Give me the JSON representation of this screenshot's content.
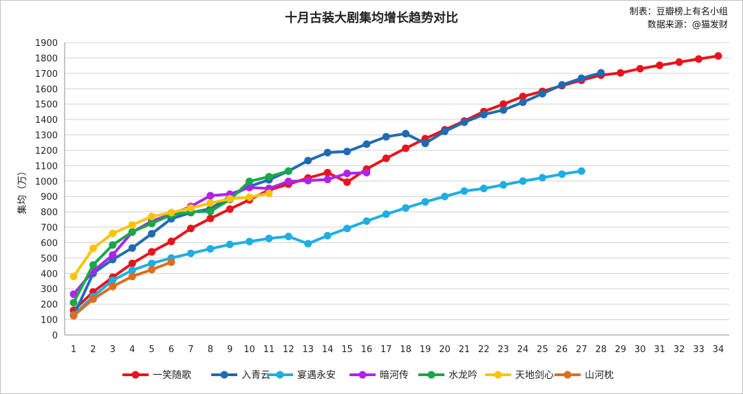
{
  "chart_data": {
    "type": "line",
    "title": "十月古装大剧集均增长趋势对比",
    "credit_line1": "制表：豆瓣榜上有名小组",
    "credit_line2": "数据来源：@猫发财",
    "ylabel": "集均（万）",
    "xlabel": "",
    "ylim": [
      0,
      1900
    ],
    "xlim": [
      1,
      34
    ],
    "y_ticks": [
      0,
      100,
      200,
      300,
      400,
      500,
      600,
      700,
      800,
      900,
      1000,
      1100,
      1200,
      1300,
      1400,
      1500,
      1600,
      1700,
      1800,
      1900
    ],
    "x_ticks": [
      1,
      2,
      3,
      4,
      5,
      6,
      7,
      8,
      9,
      10,
      11,
      12,
      13,
      14,
      15,
      16,
      17,
      18,
      19,
      20,
      21,
      22,
      23,
      24,
      25,
      26,
      27,
      28,
      29,
      30,
      31,
      32,
      33,
      34
    ],
    "grid": "horizontal",
    "legend_position": "bottom",
    "series": [
      {
        "name": "一笑随歌",
        "color": "#e8141c",
        "values": [
          160,
          280,
          375,
          465,
          540,
          608,
          692,
          757,
          818,
          878,
          942,
          980,
          1020,
          1055,
          993,
          1078,
          1148,
          1213,
          1275,
          1333,
          1390,
          1452,
          1500,
          1550,
          1583,
          1620,
          1655,
          1688,
          1703,
          1730,
          1752,
          1773,
          1793,
          1813
        ]
      },
      {
        "name": "入青云",
        "color": "#1f6bb3",
        "values": [
          125,
          400,
          490,
          565,
          658,
          755,
          795,
          820,
          900,
          965,
          1008,
          1065,
          1133,
          1185,
          1192,
          1240,
          1288,
          1308,
          1245,
          1323,
          1382,
          1432,
          1462,
          1512,
          1568,
          1625,
          1668,
          1703
        ]
      },
      {
        "name": "宴遇永安",
        "color": "#1eaee3",
        "values": [
          130,
          250,
          355,
          420,
          465,
          500,
          530,
          560,
          588,
          607,
          627,
          640,
          593,
          645,
          692,
          740,
          785,
          825,
          865,
          900,
          935,
          952,
          975,
          1000,
          1022,
          1045,
          1065
        ]
      },
      {
        "name": "暗河传",
        "color": "#b023e8",
        "values": [
          265,
          415,
          520,
          668,
          740,
          785,
          835,
          905,
          915,
          958,
          952,
          998,
          1003,
          1010,
          1050,
          1055
        ]
      },
      {
        "name": "水龙吟",
        "color": "#16a84a",
        "values": [
          210,
          455,
          585,
          670,
          725,
          780,
          800,
          803,
          880,
          998,
          1028,
          1065
        ]
      },
      {
        "name": "天地剑心",
        "color": "#fcc30d",
        "values": [
          380,
          563,
          660,
          715,
          770,
          795,
          825,
          857,
          885,
          895,
          920
        ]
      },
      {
        "name": "山河枕",
        "color": "#dd6d1f",
        "values": [
          125,
          233,
          315,
          380,
          425,
          473
        ]
      }
    ]
  }
}
